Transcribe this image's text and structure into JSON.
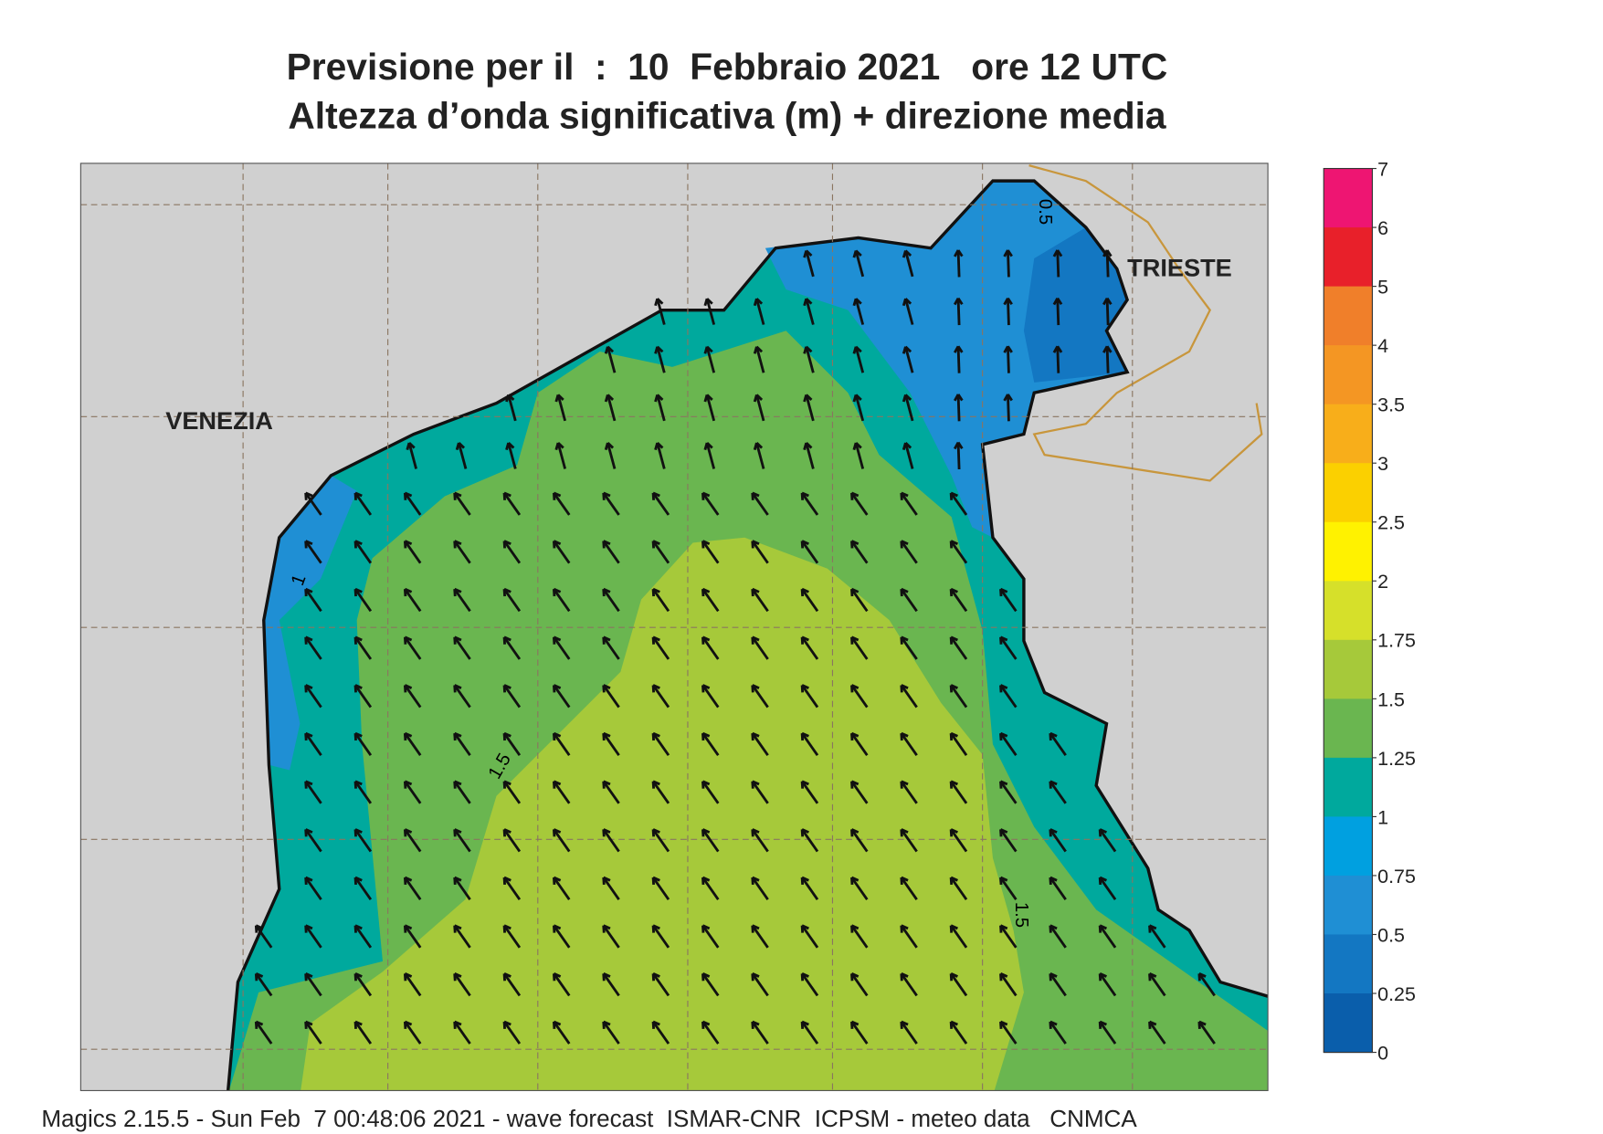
{
  "header": {
    "title": "Previsione per il  :  10  Febbraio 2021   ore 12 UTC",
    "subtitle": "Altezza d’onda significativa (m) + direzione media"
  },
  "map": {
    "places": [
      "VENEZIA",
      "TRIESTE"
    ],
    "contour_labels": [
      "0.5",
      "1",
      "1.5",
      "1.5"
    ]
  },
  "colorbar": {
    "ticks": [
      7,
      6,
      5,
      4,
      3.5,
      3,
      2.5,
      2,
      1.75,
      1.5,
      1.25,
      1,
      0.75,
      0.5,
      0.25,
      0
    ],
    "colors": [
      "#ee1572",
      "#e8202a",
      "#f07f2a",
      "#f49623",
      "#f8ae1a",
      "#fbd000",
      "#fff200",
      "#d6e02a",
      "#a6c93a",
      "#6ab650",
      "#00a99d",
      "#00a0e0",
      "#1f8fd4",
      "#1377c2",
      "#0a5eab"
    ]
  },
  "footer": "Magics 2.15.5 - Sun Feb  7 00:48:06 2021 - wave forecast  ISMAR-CNR  ICPSM - meteo data   CNMCA"
}
